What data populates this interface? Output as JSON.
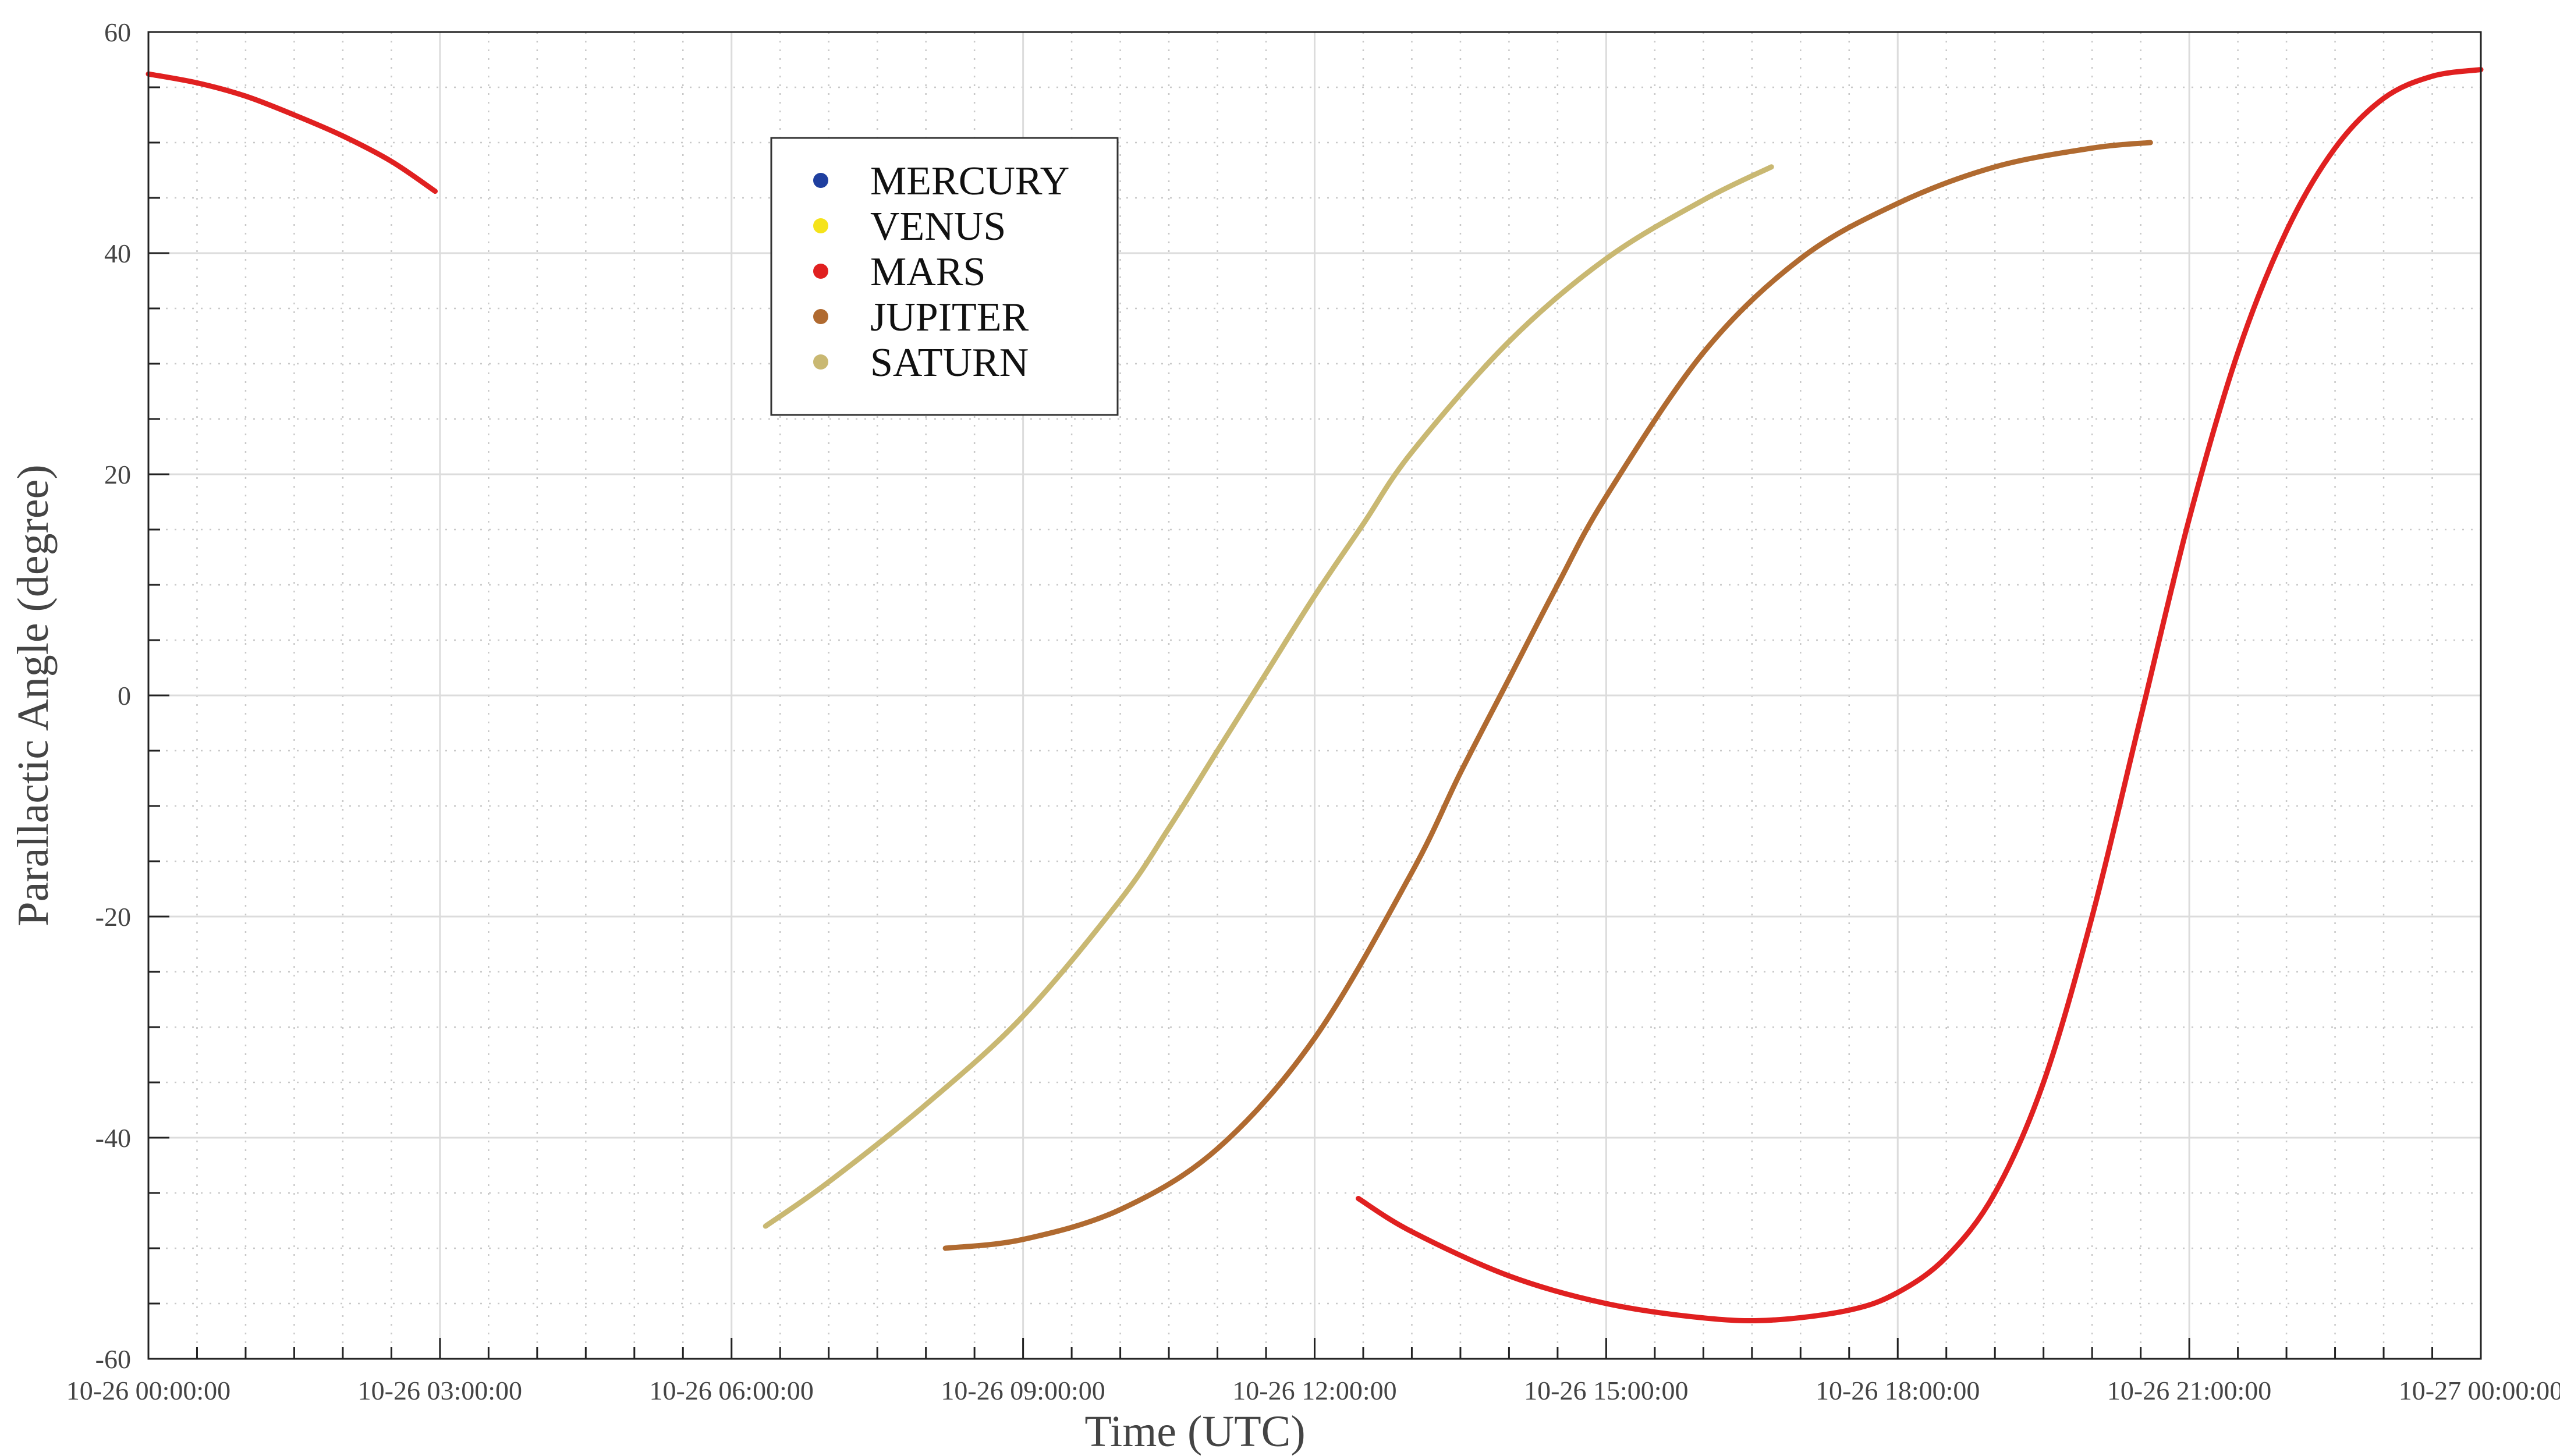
{
  "chart_data": {
    "type": "line",
    "title": "",
    "xlabel": "Time (UTC)",
    "ylabel": "Parallactic Angle (degree)",
    "xlim_hours": [
      0,
      24
    ],
    "ylim": [
      -60,
      60
    ],
    "x_ticks": [
      {
        "hour": 0,
        "label": "10-26 00:00:00"
      },
      {
        "hour": 3,
        "label": "10-26 03:00:00"
      },
      {
        "hour": 6,
        "label": "10-26 06:00:00"
      },
      {
        "hour": 9,
        "label": "10-26 09:00:00"
      },
      {
        "hour": 12,
        "label": "10-26 12:00:00"
      },
      {
        "hour": 15,
        "label": "10-26 15:00:00"
      },
      {
        "hour": 18,
        "label": "10-26 18:00:00"
      },
      {
        "hour": 21,
        "label": "10-26 21:00:00"
      },
      {
        "hour": 24,
        "label": "10-27 00:00:00"
      }
    ],
    "y_ticks": [
      {
        "value": 60,
        "label": "60"
      },
      {
        "value": 40,
        "label": "40"
      },
      {
        "value": 20,
        "label": "20"
      },
      {
        "value": 0,
        "label": "0"
      },
      {
        "value": -20,
        "label": "-20"
      },
      {
        "value": -40,
        "label": "-40"
      },
      {
        "value": -60,
        "label": "-60"
      }
    ],
    "grid": true,
    "legend_position": "top-left",
    "legend": [
      {
        "name": "MERCURY",
        "color": "#1f3f9f"
      },
      {
        "name": "VENUS",
        "color": "#f5e31a"
      },
      {
        "name": "MARS",
        "color": "#e02020"
      },
      {
        "name": "JUPITER",
        "color": "#b06a30"
      },
      {
        "name": "SATURN",
        "color": "#c9b872"
      }
    ],
    "series": [
      {
        "name": "MARS",
        "color": "#e02020",
        "segment": 1,
        "x": [
          0,
          0.5,
          1.0,
          1.5,
          2.0,
          2.5,
          2.95
        ],
        "y": [
          56.2,
          55.4,
          54.2,
          52.5,
          50.6,
          48.3,
          45.6
        ]
      },
      {
        "name": "SATURN",
        "color": "#c9b872",
        "segment": 1,
        "x": [
          6.35,
          7.0,
          8.0,
          9.0,
          10.0,
          10.5,
          11.0,
          11.5,
          12.0,
          12.5,
          13.0,
          14.0,
          15.0,
          16.0,
          16.7
        ],
        "y": [
          -48,
          -44,
          -37,
          -29,
          -18.5,
          -12,
          -5,
          2,
          9,
          15.5,
          22,
          32,
          39.5,
          44.8,
          47.8
        ]
      },
      {
        "name": "JUPITER",
        "color": "#b06a30",
        "segment": 1,
        "x": [
          8.2,
          9.0,
          10.0,
          11.0,
          12.0,
          13.0,
          13.5,
          14.0,
          14.5,
          15.0,
          16.0,
          17.0,
          18.0,
          19.0,
          20.0,
          20.6
        ],
        "y": [
          -50,
          -49.2,
          -46.5,
          -41,
          -31,
          -16,
          -7,
          1.5,
          10,
          18,
          31,
          39.5,
          44.5,
          47.8,
          49.5,
          50
        ]
      },
      {
        "name": "MARS",
        "color": "#e02020",
        "segment": 2,
        "x": [
          12.45,
          13.0,
          14.0,
          15.0,
          16.0,
          16.7,
          17.5,
          18.0,
          18.5,
          19.0,
          19.5,
          20.0,
          20.5,
          21.0,
          21.5,
          22.0,
          22.5,
          23.0,
          23.5,
          24.0
        ],
        "y": [
          -45.5,
          -48.5,
          -52.5,
          -55,
          -56.3,
          -56.5,
          -55.6,
          -54,
          -50.8,
          -45,
          -35,
          -20,
          -2,
          16,
          31,
          42,
          49.5,
          54,
          56,
          56.6
        ]
      }
    ]
  }
}
